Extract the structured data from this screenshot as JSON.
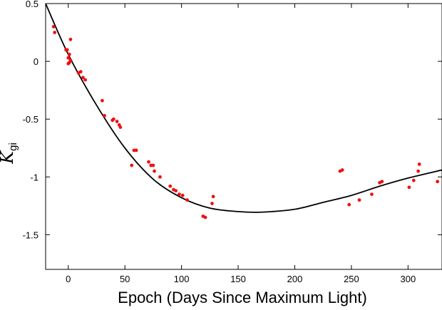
{
  "chart_data": {
    "type": "scatter",
    "title": "",
    "xlabel": "Epoch (Days Since Maximum Light)",
    "ylabel_main": "K",
    "ylabel_sub": "gi",
    "xlim": [
      -20,
      330
    ],
    "ylim": [
      -1.8,
      0.5
    ],
    "xticks": [
      0,
      50,
      100,
      150,
      200,
      250,
      300
    ],
    "xtick_labels": [
      "0",
      "50",
      "100",
      "150",
      "200",
      "250",
      "300"
    ],
    "yticks": [
      0.5,
      0,
      -0.5,
      -1,
      -1.5
    ],
    "ytick_labels": [
      "0.5",
      "0",
      "-0.5",
      "-1",
      "-1.5"
    ],
    "grid": false,
    "point_color": "#ee1111",
    "curve_color": "#000000",
    "series": [
      {
        "kind": "points",
        "points": [
          [
            -13,
            0.3
          ],
          [
            -12,
            0.25
          ],
          [
            -2,
            0.1
          ],
          [
            -1,
            0.1
          ],
          [
            0,
            0.03
          ],
          [
            0,
            -0.02
          ],
          [
            1,
            0.06
          ],
          [
            1,
            -0.01
          ],
          [
            2,
            0.01
          ],
          [
            2,
            0.19
          ],
          [
            9,
            -0.1
          ],
          [
            11,
            -0.09
          ],
          [
            13,
            -0.14
          ],
          [
            15,
            -0.16
          ],
          [
            30,
            -0.34
          ],
          [
            32,
            -0.47
          ],
          [
            39,
            -0.51
          ],
          [
            40,
            -0.5
          ],
          [
            43,
            -0.52
          ],
          [
            45,
            -0.55
          ],
          [
            46,
            -0.57
          ],
          [
            56,
            -0.9
          ],
          [
            58,
            -0.77
          ],
          [
            60,
            -0.77
          ],
          [
            71,
            -0.87
          ],
          [
            73,
            -0.9
          ],
          [
            75,
            -0.9
          ],
          [
            76,
            -0.95
          ],
          [
            81,
            -1.0
          ],
          [
            90,
            -1.08
          ],
          [
            93,
            -1.11
          ],
          [
            95,
            -1.12
          ],
          [
            98,
            -1.15
          ],
          [
            101,
            -1.16
          ],
          [
            105,
            -1.2
          ],
          [
            119,
            -1.34
          ],
          [
            121,
            -1.35
          ],
          [
            127,
            -1.23
          ],
          [
            128,
            -1.17
          ],
          [
            240,
            -0.95
          ],
          [
            242,
            -0.94
          ],
          [
            248,
            -1.24
          ],
          [
            257,
            -1.2
          ],
          [
            268,
            -1.15
          ],
          [
            275,
            -1.05
          ],
          [
            277,
            -1.04
          ],
          [
            301,
            -1.09
          ],
          [
            305,
            -1.03
          ],
          [
            309,
            -0.95
          ],
          [
            310,
            -0.89
          ],
          [
            326,
            -1.04
          ]
        ]
      },
      {
        "kind": "curve",
        "points": [
          [
            -20,
            0.5
          ],
          [
            0,
            0.06
          ],
          [
            25,
            -0.38
          ],
          [
            50,
            -0.75
          ],
          [
            75,
            -1.02
          ],
          [
            100,
            -1.18
          ],
          [
            125,
            -1.27
          ],
          [
            150,
            -1.3
          ],
          [
            170,
            -1.305
          ],
          [
            200,
            -1.28
          ],
          [
            225,
            -1.22
          ],
          [
            250,
            -1.16
          ],
          [
            275,
            -1.08
          ],
          [
            300,
            -1.01
          ],
          [
            330,
            -0.94
          ]
        ]
      }
    ]
  }
}
